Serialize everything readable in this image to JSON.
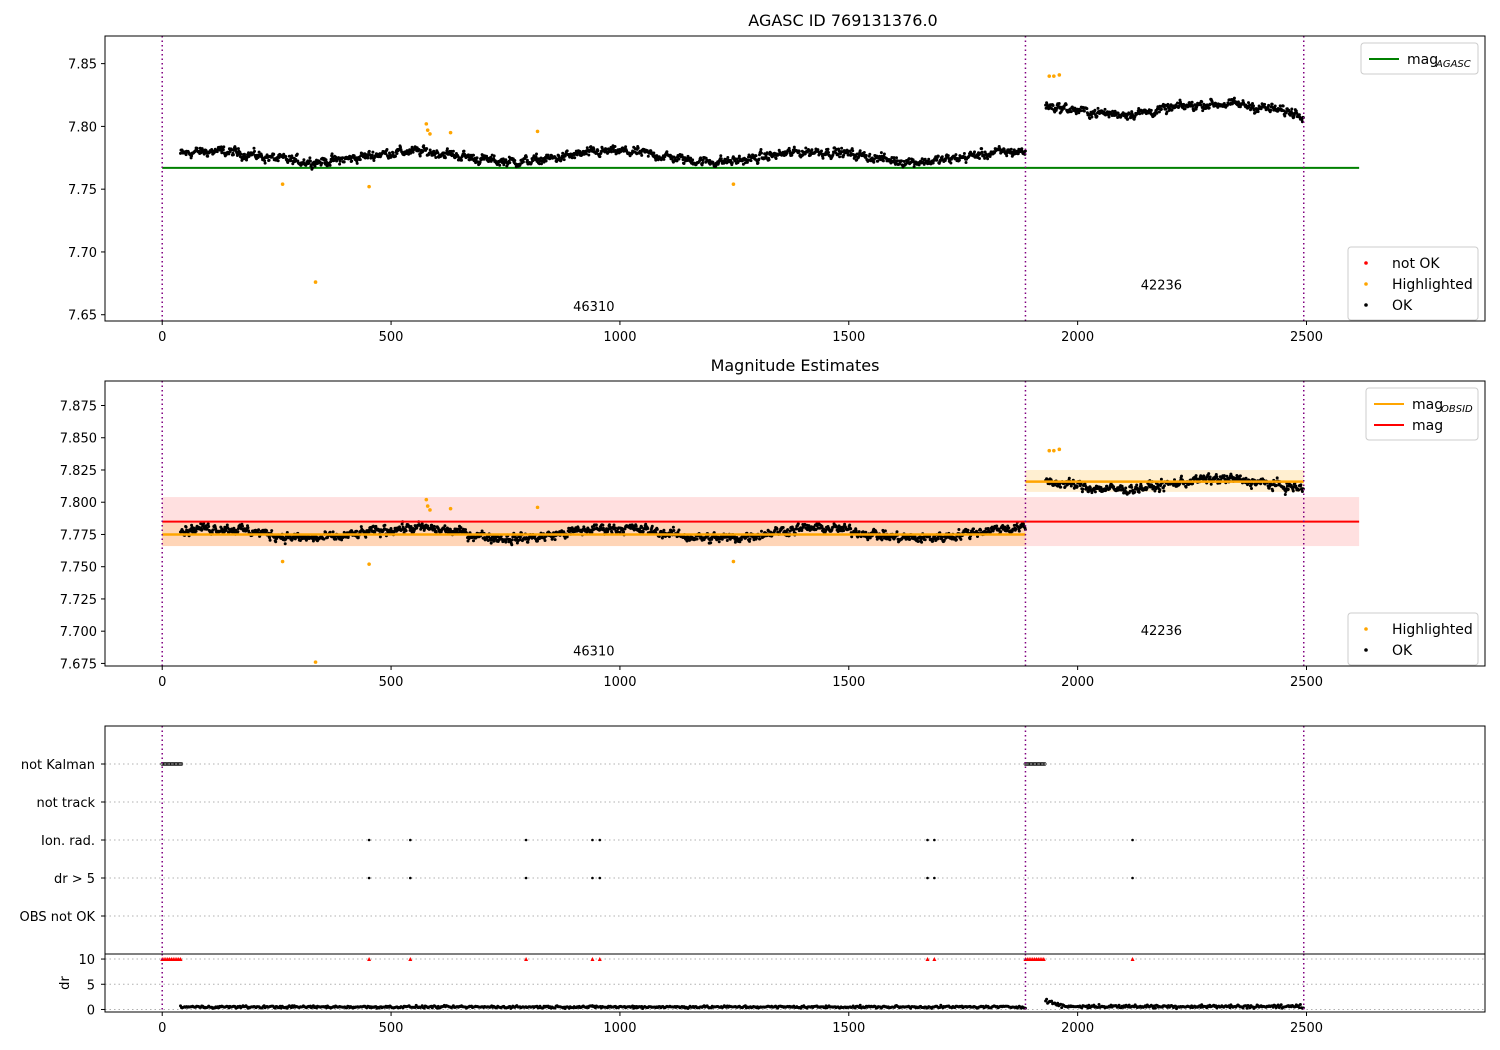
{
  "figure": {
    "obs_boundaries": [
      0,
      1886,
      2494
    ],
    "colors": {
      "ok": "#000000",
      "highlighted": "#ffa500",
      "not_ok": "#ff0000",
      "agasc_line": "#008000",
      "obsid_line": "#ffa500",
      "mag_line": "#ff0000",
      "boundary": "#800080",
      "grid": "#b0b0b0"
    }
  },
  "chart_data": [
    {
      "type": "scatter",
      "title": "AGASC ID 769131376.0",
      "xlabel": "",
      "ylabel": "",
      "xlim": [
        -125,
        2890
      ],
      "ylim": [
        7.645,
        7.872
      ],
      "xticks": [
        0,
        500,
        1000,
        1500,
        2000,
        2500
      ],
      "yticks": [
        7.65,
        7.7,
        7.75,
        7.8,
        7.85
      ],
      "ytick_labels": [
        "7.65",
        "7.70",
        "7.75",
        "7.80",
        "7.85"
      ],
      "obs_labels": [
        {
          "x": 943,
          "y": 7.653,
          "text": "46310"
        },
        {
          "x": 2183,
          "y": 7.67,
          "text": "42236"
        }
      ],
      "legend_upper": {
        "position": "upper right",
        "entries": [
          {
            "label": "mag",
            "sub": "AGASC",
            "kind": "line",
            "color": "#008000"
          }
        ]
      },
      "legend_lower": {
        "position": "lower right",
        "entries": [
          {
            "label": "not OK",
            "kind": "dot",
            "color": "#ff0000"
          },
          {
            "label": "Highlighted",
            "kind": "dot",
            "color": "#ffa500"
          },
          {
            "label": "OK",
            "kind": "dot",
            "color": "#000000"
          }
        ]
      },
      "reference_lines": [
        {
          "name": "mag_AGASC",
          "y": 7.767,
          "x": [
            0,
            2615
          ],
          "color": "#008000"
        }
      ],
      "segments": [
        {
          "x": [
            40,
            1886
          ],
          "base": 7.776,
          "noise": 0.006,
          "wave": 0.004
        },
        {
          "x": [
            1930,
            2494
          ],
          "base": 7.814,
          "noise": 0.006,
          "wave": 0.004
        }
      ],
      "highlighted_points": [
        {
          "x": 263,
          "y": 7.754
        },
        {
          "x": 335,
          "y": 7.676
        },
        {
          "x": 452,
          "y": 7.752
        },
        {
          "x": 577,
          "y": 7.802
        },
        {
          "x": 580,
          "y": 7.797
        },
        {
          "x": 585,
          "y": 7.794
        },
        {
          "x": 630,
          "y": 7.795
        },
        {
          "x": 820,
          "y": 7.796
        },
        {
          "x": 1248,
          "y": 7.754
        },
        {
          "x": 1938,
          "y": 7.84
        },
        {
          "x": 1948,
          "y": 7.84
        },
        {
          "x": 1960,
          "y": 7.841
        }
      ]
    },
    {
      "type": "scatter",
      "title": "Magnitude Estimates",
      "xlabel": "",
      "ylabel": "",
      "xlim": [
        -125,
        2890
      ],
      "ylim": [
        7.673,
        7.894
      ],
      "xticks": [
        0,
        500,
        1000,
        1500,
        2000,
        2500
      ],
      "yticks": [
        7.675,
        7.7,
        7.725,
        7.75,
        7.775,
        7.8,
        7.825,
        7.85,
        7.875
      ],
      "ytick_labels": [
        "7.675",
        "7.700",
        "7.725",
        "7.750",
        "7.775",
        "7.800",
        "7.825",
        "7.850",
        "7.875"
      ],
      "obs_labels": [
        {
          "x": 943,
          "y": 7.681,
          "text": "46310"
        },
        {
          "x": 2183,
          "y": 7.697,
          "text": "42236"
        }
      ],
      "legend_upper": {
        "position": "upper right",
        "entries": [
          {
            "label": "mag",
            "sub": "OBSID",
            "kind": "line",
            "color": "#ffa500"
          },
          {
            "label": "mag",
            "kind": "line",
            "color": "#ff0000"
          }
        ]
      },
      "legend_lower": {
        "position": "lower right",
        "entries": [
          {
            "label": "Highlighted",
            "kind": "dot",
            "color": "#ffa500"
          },
          {
            "label": "OK",
            "kind": "dot",
            "color": "#000000"
          }
        ]
      },
      "mag_band": {
        "y": 7.785,
        "low": 7.766,
        "high": 7.804,
        "x": [
          0,
          2615
        ]
      },
      "obsid_lines": [
        {
          "x": [
            0,
            1886
          ],
          "y": 7.775,
          "low": 7.766,
          "high": 7.784
        },
        {
          "x": [
            1886,
            2494
          ],
          "y": 7.816,
          "low": 7.808,
          "high": 7.825
        }
      ],
      "segments": [
        {
          "x": [
            40,
            1886
          ],
          "base": 7.776,
          "noise": 0.006,
          "wave": 0.004
        },
        {
          "x": [
            1930,
            2494
          ],
          "base": 7.814,
          "noise": 0.006,
          "wave": 0.004
        }
      ],
      "highlighted_points": [
        {
          "x": 263,
          "y": 7.754
        },
        {
          "x": 335,
          "y": 7.676
        },
        {
          "x": 452,
          "y": 7.752
        },
        {
          "x": 577,
          "y": 7.802
        },
        {
          "x": 580,
          "y": 7.797
        },
        {
          "x": 585,
          "y": 7.794
        },
        {
          "x": 630,
          "y": 7.795
        },
        {
          "x": 820,
          "y": 7.796
        },
        {
          "x": 1248,
          "y": 7.754
        },
        {
          "x": 1938,
          "y": 7.84
        },
        {
          "x": 1948,
          "y": 7.84
        },
        {
          "x": 1960,
          "y": 7.841
        }
      ]
    },
    {
      "type": "scatter",
      "title": "",
      "xlim": [
        -125,
        2890
      ],
      "categories": [
        "not Kalman",
        "not track",
        "Ion. rad.",
        "dr > 5",
        "OBS not OK"
      ],
      "flags": {
        "not Kalman": {
          "ranges": [
            [
              0,
              42
            ],
            [
              1886,
              1928
            ]
          ]
        },
        "not track": {
          "x": []
        },
        "Ion. rad.": {
          "x": [
            452,
            542,
            795,
            940,
            956,
            1672,
            1687,
            2120
          ]
        },
        "dr > 5": {
          "x": [
            452,
            542,
            795,
            940,
            956,
            1672,
            1687,
            2120
          ]
        },
        "OBS not OK": {
          "x": []
        }
      }
    },
    {
      "type": "scatter",
      "title": "",
      "ylabel": "dr",
      "xlim": [
        -125,
        2890
      ],
      "ylim": [
        -0.5,
        11
      ],
      "xticks": [
        0,
        500,
        1000,
        1500,
        2000,
        2500
      ],
      "yticks": [
        0,
        5,
        10
      ],
      "ytick_labels": [
        "0",
        "5",
        "10"
      ],
      "clipped_markers": {
        "y": 10,
        "x": [
          452,
          542,
          795,
          940,
          956,
          1672,
          1687,
          2120
        ],
        "ranges": [
          [
            0,
            42
          ],
          [
            1886,
            1928
          ]
        ],
        "color": "#ff0000"
      },
      "segments": [
        {
          "x": [
            40,
            1886
          ],
          "base": 0.5,
          "noise": 0.18
        },
        {
          "x": [
            1930,
            2494
          ],
          "base": 0.6,
          "noise": 0.25,
          "start_bump": 1.2
        }
      ]
    }
  ]
}
